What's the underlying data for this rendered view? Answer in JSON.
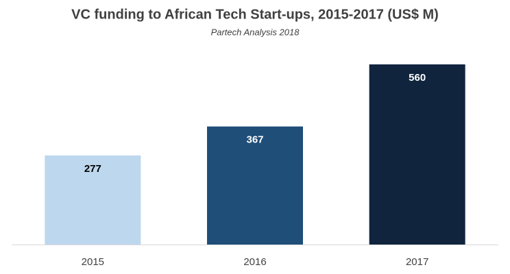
{
  "chart_data": {
    "type": "bar",
    "title": "VC funding to African Tech Start-ups, 2015-2017  (US$ M)",
    "subtitle": "Partech Analysis 2018",
    "categories": [
      "2015",
      "2016",
      "2017"
    ],
    "values": [
      277,
      367,
      560
    ],
    "colors": [
      "#bdd7ee",
      "#1f4e79",
      "#10243d"
    ],
    "grid": false
  }
}
